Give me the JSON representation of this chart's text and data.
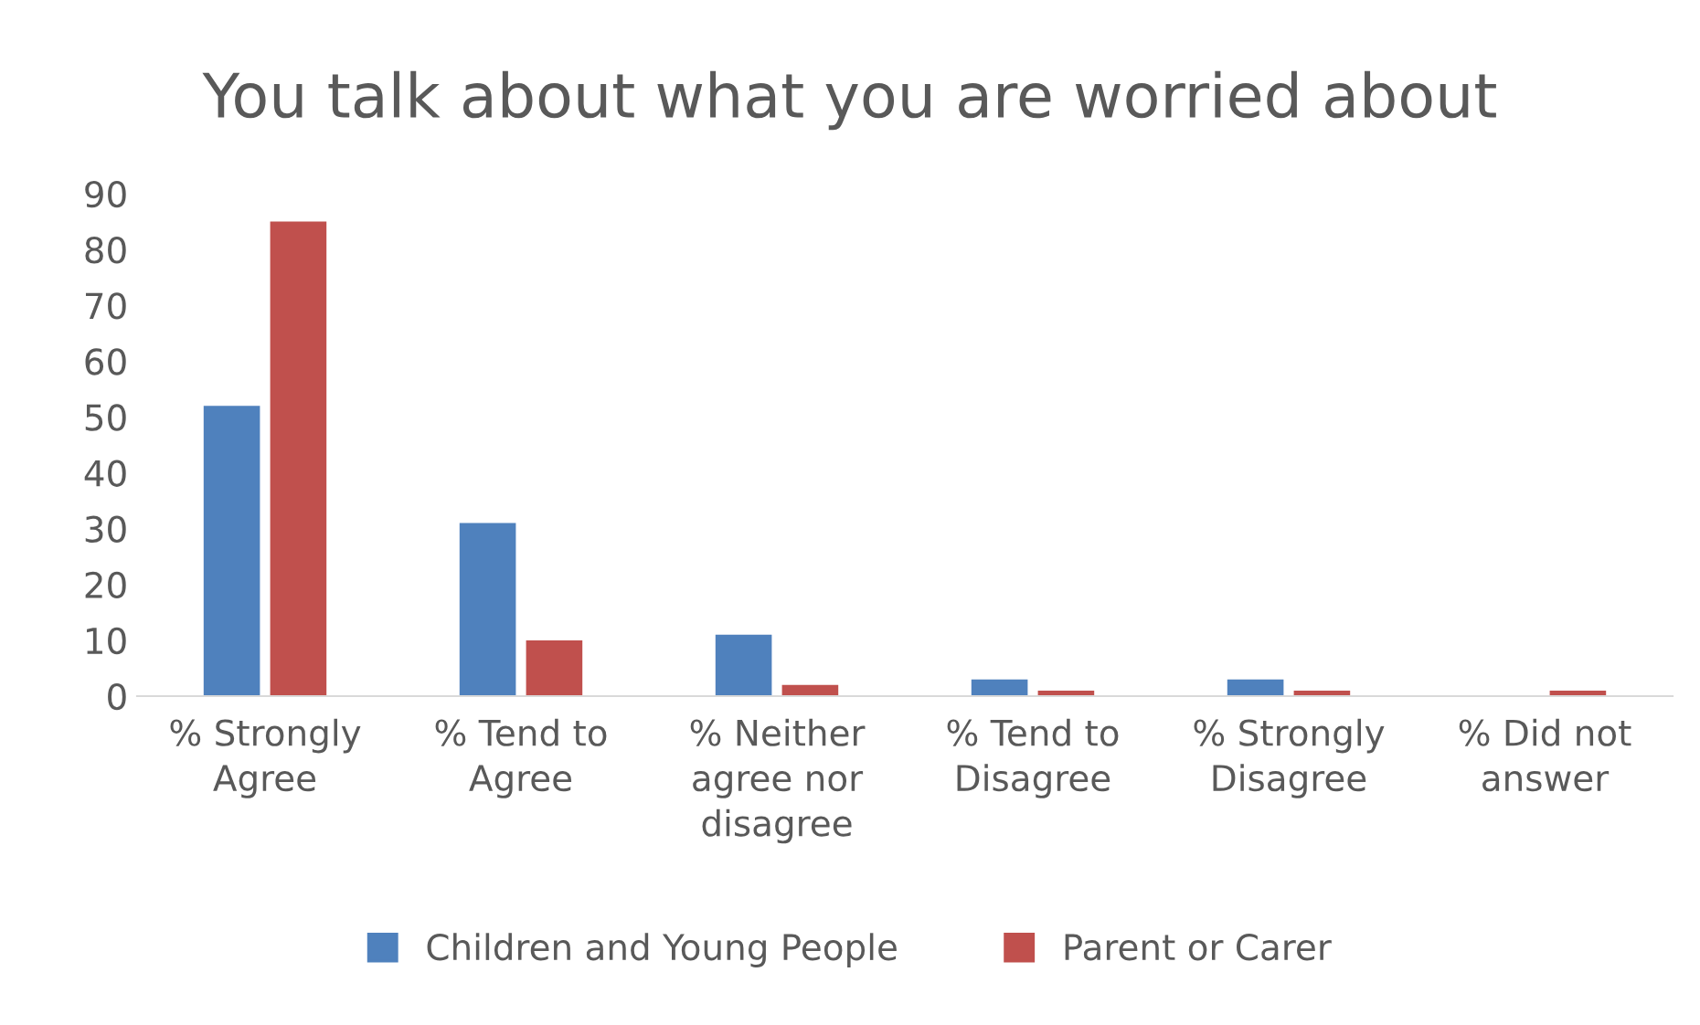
{
  "chart_data": {
    "type": "bar",
    "title": "You talk about what you are worried about",
    "categories": [
      "% Strongly Agree",
      "% Tend to Agree",
      "% Neither agree nor disagree",
      "% Tend to Disagree",
      "% Strongly Disagree",
      "% Did not answer"
    ],
    "series": [
      {
        "name": "Children and Young People",
        "color": "#4f81bd",
        "values": [
          52,
          31,
          11,
          3,
          3,
          0
        ]
      },
      {
        "name": "Parent or Carer",
        "color": "#c0504d",
        "values": [
          85,
          10,
          2,
          1,
          1,
          1
        ]
      }
    ],
    "ylim": [
      0,
      90
    ],
    "yticks": [
      0,
      10,
      20,
      30,
      40,
      50,
      60,
      70,
      80,
      90
    ],
    "grid": false,
    "legend": "bottom"
  }
}
